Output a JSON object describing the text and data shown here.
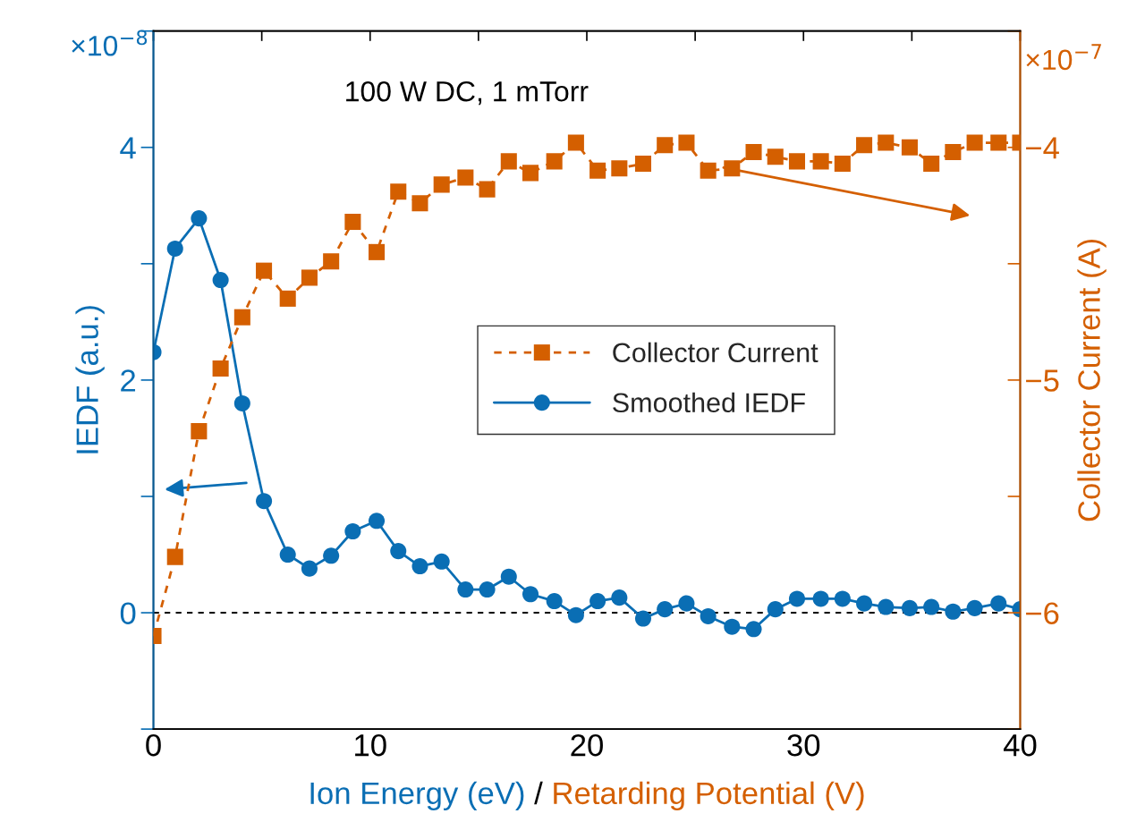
{
  "chart_data": {
    "type": "line",
    "xlabel": "Ion Energy (eV) / Retarding Potential (V)",
    "ylabel": "IEDF (a.u.)",
    "y2label": "Collector Current (A)",
    "annotations": [
      "100 W DC, 1 mTorr",
      "×10$^{−8}$",
      "×10$^{−7}$"
    ],
    "x": [
      0,
      1.0,
      2.1,
      3.1,
      4.1,
      5.1,
      6.2,
      7.2,
      8.2,
      9.2,
      10.3,
      11.3,
      12.3,
      13.3,
      14.4,
      15.4,
      16.4,
      17.4,
      18.5,
      19.5,
      20.5,
      21.5,
      22.6,
      23.6,
      24.6,
      25.6,
      26.7,
      27.7,
      28.7,
      29.7,
      30.8,
      31.8,
      32.8,
      33.8,
      34.9,
      35.9,
      36.9,
      37.9,
      39.0,
      40.0
    ],
    "series": [
      {
        "name": "Collector Current",
        "color": "#d45f00",
        "axis": "y2",
        "marker": "square",
        "line_style": "dashed",
        "values": [
          -6.1,
          -5.76,
          -5.22,
          -4.95,
          -4.73,
          -4.53,
          -4.65,
          -4.56,
          -4.49,
          -4.32,
          -4.45,
          -4.19,
          -4.24,
          -4.16,
          -4.13,
          -4.18,
          -4.06,
          -4.11,
          -4.06,
          -3.98,
          -4.1,
          -4.09,
          -4.07,
          -3.99,
          -3.98,
          -4.1,
          -4.09,
          -4.02,
          -4.04,
          -4.06,
          -4.06,
          -4.07,
          -3.99,
          -3.98,
          -4.0,
          -4.07,
          -4.02,
          -3.98,
          -3.98,
          -3.98
        ]
      },
      {
        "name": "Smoothed IEDF",
        "color": "#0a6eb4",
        "marker": "circle",
        "line_style": "solid",
        "values": [
          2.24,
          3.13,
          3.39,
          2.86,
          1.8,
          0.96,
          0.5,
          0.38,
          0.49,
          0.7,
          0.79,
          0.53,
          0.4,
          0.44,
          0.2,
          0.2,
          0.31,
          0.16,
          0.1,
          -0.02,
          0.1,
          0.13,
          -0.05,
          0.03,
          0.08,
          -0.03,
          -0.12,
          -0.14,
          0.03,
          0.12,
          0.12,
          0.12,
          0.08,
          0.05,
          0.04,
          0.05,
          0.01,
          0.04,
          0.08,
          0.03
        ]
      }
    ],
    "xlim": [
      0,
      40
    ],
    "xticks": [
      0,
      {
        "value": 5,
        "label": null
      },
      10,
      {
        "value": 15,
        "label": null
      },
      20,
      {
        "value": 25,
        "label": null
      },
      30,
      {
        "value": 35,
        "label": null
      },
      40
    ],
    "ylim": [
      -1,
      5
    ],
    "yticks": [
      {
        "value": -1,
        "label": null
      },
      0,
      {
        "value": 1,
        "label": null
      },
      2,
      {
        "value": 3,
        "label": null
      },
      4,
      {
        "value": 5,
        "label": null
      }
    ],
    "y2lim": [
      -6.5,
      -3.5
    ],
    "y2ticks": [
      {
        "value": -6.5,
        "label": null
      },
      {
        "value": -6,
        "label": "−6"
      },
      {
        "value": -5.5,
        "label": null
      },
      {
        "value": -5,
        "label": "−5"
      },
      {
        "value": -4.5,
        "label": null
      },
      {
        "value": -4,
        "label": "−4"
      },
      {
        "value": -3.5,
        "label": null
      }
    ],
    "ref_lines": [
      {
        "axis": "y",
        "value": 0,
        "color": "#000000",
        "line_style": "dashed"
      }
    ],
    "legend": "center",
    "grid": false
  }
}
